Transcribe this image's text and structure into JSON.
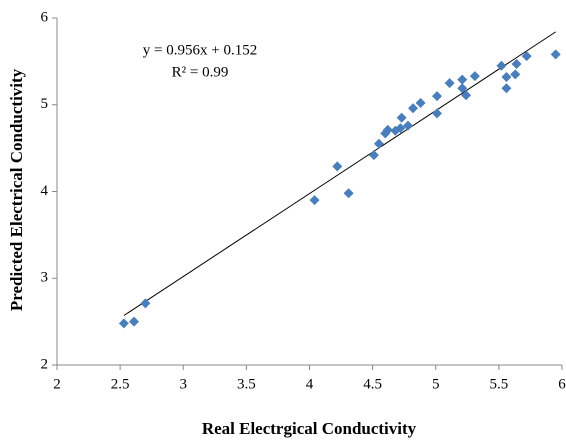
{
  "chart_data": {
    "type": "scatter",
    "x_label": "Real Electrgical Conductivity",
    "y_label": "Predicted Electrical Conductivity",
    "annotations": [
      "y = 0.956x + 0.152",
      "R² = 0.99"
    ],
    "trendline": {
      "slope": 0.956,
      "intercept": 0.152
    },
    "color": "#4a7ebb",
    "xlim": [
      2,
      6
    ],
    "ylim": [
      2,
      6
    ],
    "xticks": [
      2,
      2.5,
      3,
      3.5,
      4,
      4.5,
      5,
      5.5,
      6
    ],
    "yticks": [
      2,
      3,
      4,
      5,
      6
    ],
    "x": [
      2.53,
      2.61,
      2.7,
      4.04,
      4.22,
      4.31,
      4.51,
      4.55,
      4.6,
      4.62,
      4.68,
      4.72,
      4.73,
      4.78,
      4.82,
      4.88,
      5.01,
      5.01,
      5.11,
      5.21,
      5.21,
      5.24,
      5.31,
      5.52,
      5.56,
      5.56,
      5.63,
      5.64,
      5.72,
      5.95
    ],
    "values": [
      2.48,
      2.5,
      2.71,
      3.9,
      4.29,
      3.98,
      4.42,
      4.55,
      4.67,
      4.71,
      4.7,
      4.73,
      4.85,
      4.76,
      4.96,
      5.02,
      4.9,
      5.1,
      5.25,
      5.29,
      5.19,
      5.11,
      5.33,
      5.45,
      5.32,
      5.19,
      5.35,
      5.47,
      5.56,
      5.58
    ]
  }
}
